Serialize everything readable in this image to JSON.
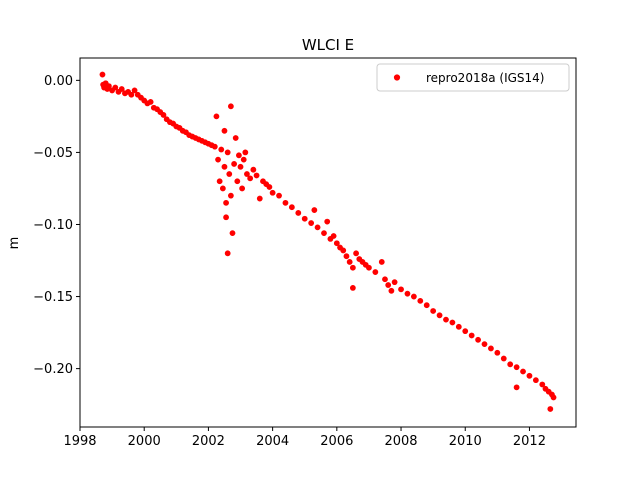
{
  "chart_data": {
    "type": "scatter",
    "title": "WLCI E",
    "xlabel": "",
    "ylabel": "m",
    "xlim": [
      1998.0,
      2013.45
    ],
    "ylim": [
      -0.2405,
      0.0155
    ],
    "xticks": [
      1998,
      2000,
      2002,
      2004,
      2006,
      2008,
      2010,
      2012
    ],
    "xtick_labels": [
      "1998",
      "2000",
      "2002",
      "2004",
      "2006",
      "2008",
      "2010",
      "2012"
    ],
    "yticks": [
      0.0,
      -0.05,
      -0.1,
      -0.15,
      -0.2
    ],
    "ytick_labels": [
      "0.00",
      "−0.05",
      "−0.10",
      "−0.15",
      "−0.20"
    ],
    "grid": false,
    "legend_position": "top-right",
    "series": [
      {
        "name": "repro2018a (IGS14)",
        "color": "#ff0000",
        "marker": "circle",
        "points": [
          [
            1998.7,
            0.004
          ],
          [
            1998.72,
            -0.003
          ],
          [
            1998.75,
            -0.005
          ],
          [
            1998.8,
            -0.002
          ],
          [
            1998.85,
            -0.006
          ],
          [
            1998.9,
            -0.004
          ],
          [
            1999.0,
            -0.007
          ],
          [
            1999.1,
            -0.005
          ],
          [
            1999.2,
            -0.008
          ],
          [
            1999.3,
            -0.006
          ],
          [
            1999.4,
            -0.009
          ],
          [
            1999.5,
            -0.008
          ],
          [
            1999.6,
            -0.01
          ],
          [
            1999.7,
            -0.007
          ],
          [
            1999.8,
            -0.01
          ],
          [
            1999.9,
            -0.012
          ],
          [
            2000.0,
            -0.014
          ],
          [
            2000.1,
            -0.016
          ],
          [
            2000.2,
            -0.015
          ],
          [
            2000.3,
            -0.019
          ],
          [
            2000.4,
            -0.02
          ],
          [
            2000.5,
            -0.022
          ],
          [
            2000.6,
            -0.024
          ],
          [
            2000.7,
            -0.027
          ],
          [
            2000.8,
            -0.029
          ],
          [
            2000.9,
            -0.03
          ],
          [
            2001.0,
            -0.032
          ],
          [
            2001.1,
            -0.033
          ],
          [
            2001.2,
            -0.035
          ],
          [
            2001.3,
            -0.036
          ],
          [
            2001.4,
            -0.038
          ],
          [
            2001.5,
            -0.039
          ],
          [
            2001.6,
            -0.04
          ],
          [
            2001.7,
            -0.041
          ],
          [
            2001.8,
            -0.042
          ],
          [
            2001.9,
            -0.043
          ],
          [
            2002.0,
            -0.044
          ],
          [
            2002.1,
            -0.045
          ],
          [
            2002.2,
            -0.046
          ],
          [
            2002.25,
            -0.025
          ],
          [
            2002.3,
            -0.055
          ],
          [
            2002.35,
            -0.07
          ],
          [
            2002.4,
            -0.048
          ],
          [
            2002.45,
            -0.075
          ],
          [
            2002.5,
            -0.06
          ],
          [
            2002.5,
            -0.035
          ],
          [
            2002.55,
            -0.085
          ],
          [
            2002.55,
            -0.095
          ],
          [
            2002.6,
            -0.05
          ],
          [
            2002.6,
            -0.12
          ],
          [
            2002.65,
            -0.065
          ],
          [
            2002.7,
            -0.018
          ],
          [
            2002.7,
            -0.08
          ],
          [
            2002.75,
            -0.106
          ],
          [
            2002.8,
            -0.058
          ],
          [
            2002.85,
            -0.04
          ],
          [
            2002.9,
            -0.07
          ],
          [
            2002.95,
            -0.052
          ],
          [
            2003.0,
            -0.06
          ],
          [
            2003.05,
            -0.075
          ],
          [
            2003.1,
            -0.055
          ],
          [
            2003.15,
            -0.05
          ],
          [
            2003.2,
            -0.065
          ],
          [
            2003.3,
            -0.068
          ],
          [
            2003.4,
            -0.062
          ],
          [
            2003.5,
            -0.066
          ],
          [
            2003.6,
            -0.082
          ],
          [
            2003.7,
            -0.07
          ],
          [
            2003.8,
            -0.072
          ],
          [
            2003.9,
            -0.074
          ],
          [
            2004.0,
            -0.078
          ],
          [
            2004.2,
            -0.08
          ],
          [
            2004.4,
            -0.085
          ],
          [
            2004.6,
            -0.088
          ],
          [
            2004.8,
            -0.092
          ],
          [
            2005.0,
            -0.096
          ],
          [
            2005.2,
            -0.099
          ],
          [
            2005.3,
            -0.09
          ],
          [
            2005.4,
            -0.102
          ],
          [
            2005.6,
            -0.106
          ],
          [
            2005.7,
            -0.098
          ],
          [
            2005.8,
            -0.11
          ],
          [
            2005.9,
            -0.108
          ],
          [
            2006.0,
            -0.113
          ],
          [
            2006.1,
            -0.116
          ],
          [
            2006.2,
            -0.118
          ],
          [
            2006.3,
            -0.122
          ],
          [
            2006.4,
            -0.126
          ],
          [
            2006.5,
            -0.13
          ],
          [
            2006.5,
            -0.144
          ],
          [
            2006.6,
            -0.12
          ],
          [
            2006.7,
            -0.124
          ],
          [
            2006.8,
            -0.126
          ],
          [
            2006.9,
            -0.128
          ],
          [
            2007.0,
            -0.13
          ],
          [
            2007.2,
            -0.133
          ],
          [
            2007.4,
            -0.126
          ],
          [
            2007.5,
            -0.138
          ],
          [
            2007.6,
            -0.142
          ],
          [
            2007.7,
            -0.146
          ],
          [
            2007.8,
            -0.14
          ],
          [
            2008.0,
            -0.145
          ],
          [
            2008.2,
            -0.148
          ],
          [
            2008.4,
            -0.15
          ],
          [
            2008.6,
            -0.153
          ],
          [
            2008.8,
            -0.156
          ],
          [
            2009.0,
            -0.16
          ],
          [
            2009.2,
            -0.163
          ],
          [
            2009.4,
            -0.166
          ],
          [
            2009.6,
            -0.168
          ],
          [
            2009.8,
            -0.171
          ],
          [
            2010.0,
            -0.174
          ],
          [
            2010.2,
            -0.177
          ],
          [
            2010.4,
            -0.18
          ],
          [
            2010.6,
            -0.183
          ],
          [
            2010.8,
            -0.186
          ],
          [
            2011.0,
            -0.189
          ],
          [
            2011.2,
            -0.193
          ],
          [
            2011.4,
            -0.197
          ],
          [
            2011.6,
            -0.199
          ],
          [
            2011.6,
            -0.213
          ],
          [
            2011.8,
            -0.202
          ],
          [
            2012.0,
            -0.205
          ],
          [
            2012.2,
            -0.208
          ],
          [
            2012.4,
            -0.211
          ],
          [
            2012.5,
            -0.214
          ],
          [
            2012.6,
            -0.216
          ],
          [
            2012.65,
            -0.228
          ],
          [
            2012.7,
            -0.218
          ],
          [
            2012.75,
            -0.22
          ]
        ]
      }
    ]
  }
}
